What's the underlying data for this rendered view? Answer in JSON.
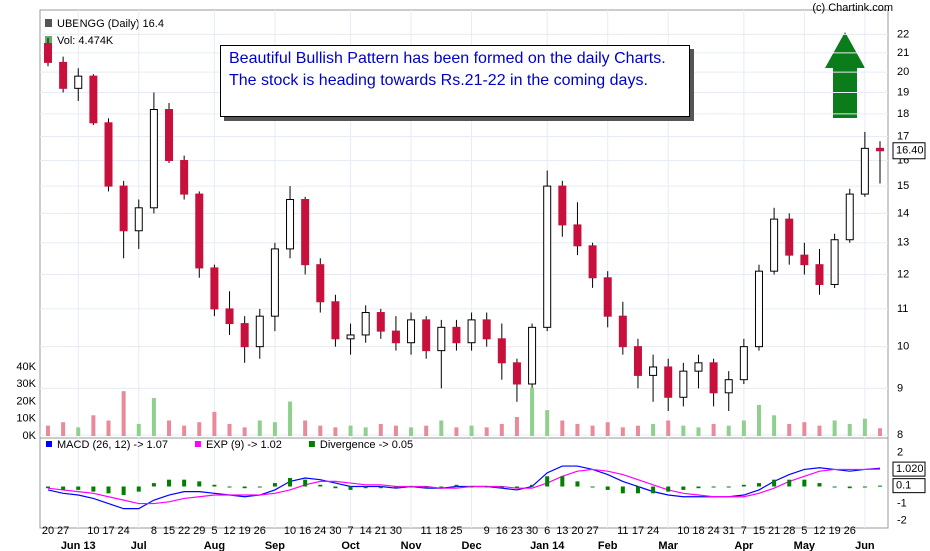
{
  "copyright": "(c) Chartink.com",
  "chart_data": [
    {
      "type": "candlestick",
      "title": "UBENGG (Daily) 16.4",
      "annotation": "Beautiful Bullish Pattern has been formed on the daily Charts. The stock is heading towards Rs.21-22 in the coming days.",
      "categories": [
        "20",
        "27",
        null,
        "10",
        "17",
        "24",
        null,
        "8",
        "15",
        "22",
        "29",
        "5",
        "12",
        "19",
        "26",
        null,
        "10",
        "16",
        "24",
        "30",
        "7",
        "14",
        "21",
        "30",
        null,
        "11",
        "18",
        "25",
        null,
        "9",
        "16",
        "23",
        "30",
        "6",
        "13",
        "20",
        "27",
        null,
        "11",
        "17",
        "24",
        null,
        "10",
        "18",
        "24",
        "31",
        "7",
        "15",
        "21",
        "28",
        "5",
        "12",
        "19",
        "26",
        null,
        null
      ],
      "xticks": [
        {
          "value": 2,
          "label": "Jun 13"
        },
        {
          "value": 6,
          "label": "Jul"
        },
        {
          "value": 11,
          "label": "Aug"
        },
        {
          "value": 15,
          "label": "Sep"
        },
        {
          "value": 20,
          "label": "Oct"
        },
        {
          "value": 24,
          "label": "Nov"
        },
        {
          "value": 28,
          "label": "Dec"
        },
        {
          "value": 33,
          "label": "Jan 14"
        },
        {
          "value": 37,
          "label": "Feb"
        },
        {
          "value": 41,
          "label": "Mar"
        },
        {
          "value": 46,
          "label": "Apr"
        },
        {
          "value": 50,
          "label": "May"
        },
        {
          "value": 54,
          "label": "Jun"
        }
      ],
      "open": [
        21.5,
        20.5,
        19.2,
        19.8,
        17.6,
        15.0,
        13.4,
        14.2,
        18.2,
        16.0,
        14.7,
        12.2,
        11.0,
        10.6,
        10.0,
        10.8,
        12.8,
        14.5,
        12.3,
        11.2,
        10.2,
        10.3,
        10.9,
        10.4,
        10.1,
        10.7,
        9.9,
        10.5,
        10.1,
        10.7,
        10.2,
        9.6,
        9.1,
        10.5,
        15.0,
        13.6,
        12.9,
        11.9,
        10.8,
        10.0,
        9.3,
        9.5,
        8.8,
        9.4,
        9.6,
        8.9,
        9.2,
        10.0,
        12.1,
        13.8,
        12.6,
        12.3,
        11.7,
        13.1,
        14.7,
        16.5
      ],
      "high": [
        21.8,
        20.8,
        20.2,
        19.9,
        17.8,
        15.2,
        14.5,
        19.0,
        18.5,
        16.2,
        14.8,
        12.3,
        11.5,
        10.8,
        11.0,
        13.0,
        15.0,
        14.6,
        12.5,
        11.4,
        10.6,
        11.1,
        11.0,
        10.8,
        10.9,
        10.8,
        10.7,
        10.7,
        10.9,
        10.9,
        10.6,
        9.7,
        10.6,
        15.6,
        15.2,
        14.4,
        13.0,
        12.1,
        11.2,
        10.2,
        9.8,
        9.7,
        9.6,
        9.8,
        9.7,
        9.4,
        10.2,
        12.3,
        14.2,
        14.0,
        13.0,
        12.8,
        13.3,
        14.9,
        17.2,
        16.8
      ],
      "low": [
        20.3,
        19.0,
        18.6,
        17.5,
        14.8,
        12.5,
        12.8,
        14.0,
        15.9,
        14.5,
        11.9,
        10.8,
        10.3,
        9.6,
        9.7,
        10.4,
        12.5,
        12.0,
        10.9,
        10.0,
        9.8,
        10.1,
        10.2,
        9.9,
        9.8,
        9.7,
        9.0,
        9.9,
        9.9,
        10.0,
        9.2,
        8.7,
        9.0,
        10.4,
        13.2,
        12.6,
        11.6,
        10.5,
        9.8,
        9.0,
        8.7,
        8.5,
        8.6,
        9.0,
        8.6,
        8.5,
        9.1,
        9.9,
        12.0,
        12.3,
        12.0,
        11.4,
        11.6,
        13.0,
        14.6,
        15.1
      ],
      "close": [
        20.5,
        19.2,
        19.8,
        17.6,
        15.0,
        13.4,
        14.2,
        18.2,
        16.0,
        14.7,
        12.2,
        11.0,
        10.6,
        10.0,
        10.8,
        12.8,
        14.5,
        12.3,
        11.2,
        10.2,
        10.3,
        10.9,
        10.4,
        10.1,
        10.7,
        9.9,
        10.5,
        10.1,
        10.7,
        10.2,
        9.6,
        9.1,
        10.5,
        15.0,
        13.6,
        12.9,
        11.9,
        10.8,
        10.0,
        9.3,
        9.5,
        8.8,
        9.4,
        9.6,
        8.9,
        9.2,
        10.0,
        12.1,
        13.8,
        12.6,
        12.3,
        11.7,
        13.1,
        14.7,
        16.5,
        16.4
      ],
      "up_color": "#ffffff",
      "down_color": "#c8103c",
      "ylim": [
        7.9,
        23.4
      ],
      "yticks": [
        8,
        9,
        10,
        11,
        12,
        13,
        14,
        15,
        16,
        17,
        18,
        19,
        20,
        21,
        22
      ],
      "log_scale": true,
      "grid": true,
      "last_label": "16.40"
    },
    {
      "type": "bar",
      "title": "Vol: 4.474K",
      "values": [
        6000,
        8000,
        5000,
        12000,
        9000,
        26000,
        7000,
        22000,
        9000,
        6000,
        8000,
        14000,
        7000,
        5000,
        9000,
        8000,
        20000,
        9000,
        6000,
        5000,
        6000,
        5000,
        7000,
        6000,
        5000,
        6000,
        9000,
        5000,
        6000,
        5000,
        7000,
        11000,
        28000,
        15000,
        9000,
        7000,
        6000,
        8000,
        5000,
        6000,
        7000,
        9000,
        6000,
        5000,
        7000,
        6000,
        9000,
        18000,
        12000,
        7000,
        8000,
        6000,
        9000,
        7000,
        10000,
        4474
      ],
      "up_color": "#8fd08f",
      "down_color": "#e88a9a",
      "ylim": [
        0,
        40000
      ],
      "yticks": [
        {
          "value": 0,
          "label": "0K"
        },
        {
          "value": 10000,
          "label": "10K"
        },
        {
          "value": 20000,
          "label": "20K"
        },
        {
          "value": 30000,
          "label": "30K"
        },
        {
          "value": 40000,
          "label": "40K"
        }
      ]
    },
    {
      "type": "macd",
      "series": [
        {
          "name": "MACD (26, 12) -> 1.07",
          "color": "#0000ff",
          "values": [
            -0.2,
            -0.4,
            -0.5,
            -0.7,
            -1.0,
            -1.3,
            -1.3,
            -0.8,
            -0.5,
            -0.3,
            -0.3,
            -0.4,
            -0.5,
            -0.6,
            -0.5,
            -0.2,
            0.3,
            0.5,
            0.4,
            0.2,
            0.0,
            0.0,
            0.0,
            -0.1,
            0.0,
            -0.1,
            -0.1,
            0.0,
            0.0,
            0.0,
            -0.1,
            -0.2,
            0.0,
            0.8,
            1.2,
            1.2,
            1.0,
            0.7,
            0.3,
            0.0,
            -0.3,
            -0.5,
            -0.6,
            -0.6,
            -0.6,
            -0.6,
            -0.5,
            -0.2,
            0.3,
            0.7,
            1.0,
            1.1,
            1.0,
            0.9,
            1.0,
            1.07
          ]
        },
        {
          "name": "EXP (9) -> 1.02",
          "color": "#ff00ff",
          "last_label": "1.020",
          "values": [
            -0.1,
            -0.2,
            -0.3,
            -0.4,
            -0.6,
            -0.8,
            -1.0,
            -1.0,
            -0.9,
            -0.7,
            -0.6,
            -0.5,
            -0.5,
            -0.5,
            -0.5,
            -0.4,
            -0.2,
            0.1,
            0.3,
            0.3,
            0.2,
            0.1,
            0.1,
            0.0,
            0.0,
            0.0,
            -0.1,
            -0.1,
            0.0,
            0.0,
            0.0,
            -0.1,
            -0.1,
            0.2,
            0.6,
            0.9,
            1.0,
            0.9,
            0.7,
            0.4,
            0.1,
            -0.2,
            -0.4,
            -0.5,
            -0.6,
            -0.6,
            -0.6,
            -0.4,
            -0.1,
            0.3,
            0.6,
            0.9,
            1.0,
            1.0,
            1.0,
            1.02
          ]
        },
        {
          "name": "Divergence -> 0.05",
          "color": "#008000",
          "style": "bar",
          "last_label": "0.1",
          "values": [
            -0.1,
            -0.2,
            -0.2,
            -0.3,
            -0.4,
            -0.5,
            -0.3,
            0.2,
            0.4,
            0.4,
            0.3,
            0.1,
            0.0,
            -0.1,
            0.0,
            0.2,
            0.5,
            0.4,
            0.1,
            -0.1,
            -0.2,
            -0.1,
            -0.1,
            -0.1,
            0.0,
            -0.1,
            0.0,
            0.1,
            0.0,
            0.0,
            -0.1,
            -0.1,
            0.1,
            0.6,
            0.6,
            0.3,
            0.0,
            -0.2,
            -0.4,
            -0.4,
            -0.4,
            -0.3,
            -0.2,
            -0.1,
            0.0,
            0.0,
            0.1,
            0.2,
            0.4,
            0.4,
            0.4,
            0.2,
            0.0,
            -0.1,
            0.0,
            0.05
          ]
        }
      ],
      "ylim": [
        -2.2,
        2.2
      ],
      "yticks": [
        -2,
        -1,
        2
      ]
    }
  ]
}
